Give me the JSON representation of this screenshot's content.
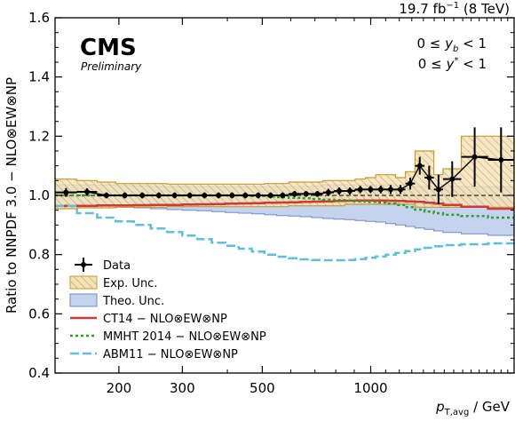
{
  "header": {
    "lumi": "19.7 fb",
    "lumi_exp": "−1",
    "energy": " (8 TeV)"
  },
  "cms": {
    "label": "CMS",
    "sublabel": "Preliminary"
  },
  "cuts": {
    "yb": {
      "lo": "0 ≤ ",
      "var": "y",
      "sub": "b",
      "hi": " < 1"
    },
    "ystar": {
      "lo": "0 ≤ ",
      "var": "y",
      "sup": "*",
      "hi": " < 1"
    }
  },
  "axes": {
    "ylabel": "Ratio to NNPDF 3.0 − NLO⊗EW⊗NP",
    "xlabel_var": "p",
    "xlabel_sub": "T,avg",
    "xlabel_unit": " / GeV"
  },
  "colors": {
    "data": "#000000",
    "exp_fill": "#f3e3bd",
    "exp_edge": "#c99a2e",
    "theo_fill": "#c6d3ee",
    "theo_edge": "#6f8cc8",
    "ct14": "#cc3a3a",
    "mmht": "#2ca02c",
    "abm11": "#5fbfd8"
  },
  "legend": {
    "placement": "lower-left",
    "items": [
      {
        "key": "data",
        "label": "Data"
      },
      {
        "key": "exp",
        "label": "Exp. Unc."
      },
      {
        "key": "theo",
        "label": "Theo. Unc."
      },
      {
        "key": "ct14",
        "label": "CT14 − NLO⊗EW⊗NP"
      },
      {
        "key": "mmht",
        "label": "MMHT 2014 − NLO⊗EW⊗NP"
      },
      {
        "key": "abm11",
        "label": "ABM11 − NLO⊗EW⊗NP"
      }
    ]
  },
  "chart_data": {
    "type": "scatter",
    "xscale": "log",
    "xlim": [
      133,
      2500
    ],
    "ylim": [
      0.4,
      1.6
    ],
    "xticks": [
      200,
      300,
      500,
      1000
    ],
    "xtick_labels": [
      "200",
      "300",
      "500",
      "1000"
    ],
    "yticks": [
      0.4,
      0.6,
      0.8,
      1.0,
      1.2,
      1.4,
      1.6
    ],
    "ytick_labels": [
      "0.4",
      "0.6",
      "0.8",
      "1.0",
      "1.2",
      "1.4",
      "1.6"
    ],
    "bin_edges": [
      133,
      153,
      174,
      196,
      220,
      245,
      272,
      300,
      330,
      362,
      395,
      430,
      468,
      507,
      548,
      592,
      638,
      686,
      737,
      790,
      846,
      905,
      967,
      1032,
      1101,
      1172,
      1248,
      1327,
      1410,
      1497,
      1588,
      1784,
      2116,
      2500
    ],
    "series": [
      {
        "name": "Data",
        "y": [
          1.01,
          1.012,
          1.0,
          1.0,
          1.0,
          1.0,
          1.0,
          1.0,
          1.0,
          1.0,
          1.0,
          1.0,
          1.0,
          1.0,
          1.0,
          1.005,
          1.005,
          1.005,
          1.01,
          1.015,
          1.015,
          1.02,
          1.02,
          1.02,
          1.02,
          1.02,
          1.04,
          1.1,
          1.06,
          1.02,
          1.055,
          1.13,
          1.12
        ],
        "err": [
          0.015,
          0.012,
          0.01,
          0.01,
          0.01,
          0.01,
          0.01,
          0.01,
          0.01,
          0.01,
          0.01,
          0.01,
          0.01,
          0.01,
          0.01,
          0.01,
          0.01,
          0.01,
          0.012,
          0.012,
          0.012,
          0.012,
          0.012,
          0.013,
          0.015,
          0.015,
          0.02,
          0.03,
          0.04,
          0.05,
          0.06,
          0.1,
          0.11
        ]
      },
      {
        "name": "Exp. Unc.",
        "lo": [
          0.955,
          0.958,
          0.958,
          0.96,
          0.96,
          0.96,
          0.962,
          0.962,
          0.962,
          0.962,
          0.962,
          0.962,
          0.962,
          0.962,
          0.962,
          0.965,
          0.965,
          0.965,
          0.965,
          0.965,
          0.97,
          0.97,
          0.97,
          0.97,
          0.97,
          0.97,
          0.97,
          0.96,
          0.96,
          0.96,
          0.96,
          0.96,
          0.96
        ],
        "hi": [
          1.055,
          1.05,
          1.045,
          1.04,
          1.04,
          1.04,
          1.038,
          1.038,
          1.038,
          1.038,
          1.038,
          1.038,
          1.038,
          1.04,
          1.04,
          1.045,
          1.045,
          1.045,
          1.05,
          1.05,
          1.05,
          1.055,
          1.06,
          1.07,
          1.07,
          1.06,
          1.08,
          1.15,
          1.15,
          1.07,
          1.09,
          1.2,
          1.2
        ]
      },
      {
        "name": "Theo. Unc.",
        "lo": [
          0.96,
          0.96,
          0.96,
          0.96,
          0.958,
          0.955,
          0.952,
          0.95,
          0.948,
          0.945,
          0.942,
          0.94,
          0.938,
          0.935,
          0.932,
          0.93,
          0.928,
          0.925,
          0.922,
          0.92,
          0.918,
          0.915,
          0.912,
          0.91,
          0.905,
          0.9,
          0.895,
          0.89,
          0.885,
          0.88,
          0.875,
          0.87,
          0.865
        ],
        "hi": [
          1.035,
          1.035,
          1.035,
          1.033,
          1.032,
          1.03,
          1.03,
          1.03,
          1.03,
          1.03,
          1.03,
          1.03,
          1.03,
          1.03,
          1.03,
          1.03,
          1.03,
          1.032,
          1.035,
          1.035,
          1.035,
          1.035,
          1.035,
          1.035,
          1.035,
          1.033,
          1.03,
          1.03,
          1.03,
          1.03,
          1.03,
          1.03,
          1.03
        ]
      },
      {
        "name": "CT14 − NLO⊗EW⊗NP",
        "y": [
          0.965,
          0.965,
          0.966,
          0.966,
          0.967,
          0.968,
          0.968,
          0.969,
          0.97,
          0.971,
          0.972,
          0.973,
          0.974,
          0.975,
          0.976,
          0.977,
          0.978,
          0.979,
          0.98,
          0.981,
          0.982,
          0.983,
          0.983,
          0.983,
          0.982,
          0.981,
          0.98,
          0.978,
          0.975,
          0.972,
          0.968,
          0.962,
          0.955
        ]
      },
      {
        "name": "MMHT 2014 − NLO⊗EW⊗NP",
        "y": [
          1.0,
          1.0,
          1.0,
          1.0,
          1.0,
          1.0,
          1.0,
          1.0,
          1.0,
          1.0,
          1.0,
          1.0,
          0.998,
          0.996,
          0.994,
          0.992,
          0.99,
          0.988,
          0.986,
          0.984,
          0.982,
          0.98,
          0.978,
          0.976,
          0.972,
          0.968,
          0.96,
          0.952,
          0.945,
          0.94,
          0.935,
          0.93,
          0.925
        ]
      },
      {
        "name": "ABM11 − NLO⊗EW⊗NP",
        "y": [
          0.965,
          0.94,
          0.925,
          0.912,
          0.9,
          0.888,
          0.876,
          0.864,
          0.852,
          0.84,
          0.83,
          0.82,
          0.81,
          0.8,
          0.793,
          0.788,
          0.784,
          0.782,
          0.781,
          0.781,
          0.782,
          0.785,
          0.789,
          0.794,
          0.8,
          0.806,
          0.812,
          0.818,
          0.823,
          0.828,
          0.832,
          0.835,
          0.838
        ]
      }
    ]
  }
}
